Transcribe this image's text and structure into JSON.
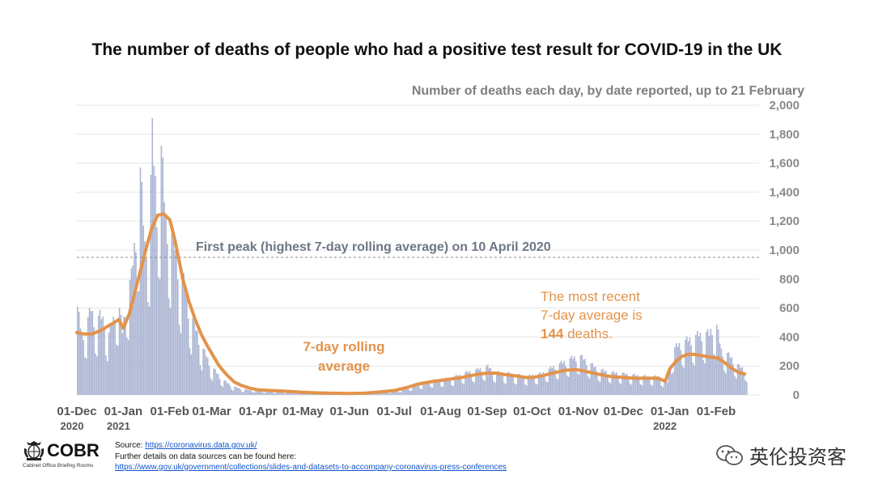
{
  "chart_data": {
    "type": "bar",
    "title": "The number of deaths of people who had a positive test result for COVID-19 in the UK",
    "subtitle": "Number of deaths each day, by date reported, up to 21 February",
    "y_ticks": [
      "2,000",
      "1,800",
      "1,600",
      "1,400",
      "1,200",
      "1,000",
      "800",
      "600",
      "400",
      "200",
      "0"
    ],
    "ylim": [
      0,
      2000
    ],
    "x_ticks": [
      {
        "label": "01-Dec",
        "year": "2020",
        "day": 0
      },
      {
        "label": "01-Jan",
        "year": "2021",
        "day": 31
      },
      {
        "label": "01-Feb",
        "year": "",
        "day": 62
      },
      {
        "label": "01-Mar",
        "year": "",
        "day": 90
      },
      {
        "label": "01-Apr",
        "year": "",
        "day": 121
      },
      {
        "label": "01-May",
        "year": "",
        "day": 151
      },
      {
        "label": "01-Jun",
        "year": "",
        "day": 182
      },
      {
        "label": "01-Jul",
        "year": "",
        "day": 212
      },
      {
        "label": "01-Aug",
        "year": "",
        "day": 243
      },
      {
        "label": "01-Sep",
        "year": "",
        "day": 274
      },
      {
        "label": "01-Oct",
        "year": "",
        "day": 304
      },
      {
        "label": "01-Nov",
        "year": "",
        "day": 335
      },
      {
        "label": "01-Dec",
        "year": "",
        "day": 365
      },
      {
        "label": "01-Jan",
        "year": "2022",
        "day": 396
      },
      {
        "label": "01-Feb",
        "year": "",
        "day": 427
      }
    ],
    "x_start": "2020-12-01",
    "x_end": "2022-02-21",
    "series": [
      {
        "name": "Daily deaths",
        "kind": "bar",
        "color": "#aab4d2",
        "description_points": [
          [
            0,
            610
          ],
          [
            3,
            420
          ],
          [
            6,
            500
          ],
          [
            9,
            610
          ],
          [
            12,
            520
          ],
          [
            15,
            560
          ],
          [
            18,
            530
          ],
          [
            21,
            430
          ],
          [
            24,
            540
          ],
          [
            27,
            680
          ],
          [
            30,
            450
          ],
          [
            33,
            720
          ],
          [
            36,
            830
          ],
          [
            39,
            1160
          ],
          [
            42,
            1570
          ],
          [
            45,
            1060
          ],
          [
            48,
            1220
          ],
          [
            50,
            1820
          ],
          [
            53,
            1360
          ],
          [
            56,
            1720
          ],
          [
            59,
            1240
          ],
          [
            62,
            1200
          ],
          [
            65,
            1050
          ],
          [
            68,
            880
          ],
          [
            71,
            800
          ],
          [
            74,
            620
          ],
          [
            77,
            530
          ],
          [
            80,
            440
          ],
          [
            83,
            340
          ],
          [
            86,
            280
          ],
          [
            89,
            210
          ],
          [
            92,
            170
          ],
          [
            95,
            130
          ],
          [
            98,
            100
          ],
          [
            101,
            80
          ],
          [
            104,
            60
          ],
          [
            107,
            50
          ],
          [
            110,
            40
          ],
          [
            115,
            35
          ],
          [
            121,
            30
          ],
          [
            130,
            25
          ],
          [
            140,
            20
          ],
          [
            151,
            15
          ],
          [
            160,
            12
          ],
          [
            170,
            10
          ],
          [
            182,
            10
          ],
          [
            190,
            12
          ],
          [
            200,
            18
          ],
          [
            212,
            25
          ],
          [
            220,
            45
          ],
          [
            228,
            75
          ],
          [
            236,
            100
          ],
          [
            243,
            110
          ],
          [
            250,
            120
          ],
          [
            257,
            150
          ],
          [
            264,
            170
          ],
          [
            274,
            200
          ],
          [
            280,
            160
          ],
          [
            290,
            150
          ],
          [
            300,
            130
          ],
          [
            304,
            140
          ],
          [
            310,
            150
          ],
          [
            318,
            200
          ],
          [
            326,
            240
          ],
          [
            335,
            280
          ],
          [
            340,
            240
          ],
          [
            348,
            180
          ],
          [
            356,
            160
          ],
          [
            365,
            150
          ],
          [
            372,
            140
          ],
          [
            380,
            130
          ],
          [
            388,
            130
          ],
          [
            394,
            90
          ],
          [
            398,
            320
          ],
          [
            402,
            360
          ],
          [
            406,
            380
          ],
          [
            410,
            400
          ],
          [
            414,
            420
          ],
          [
            418,
            440
          ],
          [
            422,
            430
          ],
          [
            426,
            540
          ],
          [
            430,
            320
          ],
          [
            434,
            290
          ],
          [
            438,
            250
          ],
          [
            442,
            200
          ],
          [
            447,
            180
          ]
        ]
      },
      {
        "name": "7-day rolling average",
        "kind": "line",
        "color": "#e3934b",
        "points": [
          [
            0,
            430
          ],
          [
            5,
            420
          ],
          [
            10,
            420
          ],
          [
            15,
            440
          ],
          [
            20,
            470
          ],
          [
            25,
            500
          ],
          [
            28,
            520
          ],
          [
            31,
            460
          ],
          [
            35,
            560
          ],
          [
            38,
            680
          ],
          [
            42,
            840
          ],
          [
            46,
            1000
          ],
          [
            50,
            1150
          ],
          [
            54,
            1240
          ],
          [
            58,
            1250
          ],
          [
            62,
            1210
          ],
          [
            65,
            1090
          ],
          [
            68,
            940
          ],
          [
            71,
            790
          ],
          [
            75,
            640
          ],
          [
            79,
            520
          ],
          [
            83,
            420
          ],
          [
            87,
            340
          ],
          [
            91,
            270
          ],
          [
            95,
            200
          ],
          [
            100,
            140
          ],
          [
            105,
            90
          ],
          [
            110,
            65
          ],
          [
            116,
            45
          ],
          [
            121,
            35
          ],
          [
            130,
            30
          ],
          [
            140,
            25
          ],
          [
            151,
            18
          ],
          [
            160,
            14
          ],
          [
            170,
            12
          ],
          [
            182,
            10
          ],
          [
            192,
            12
          ],
          [
            200,
            18
          ],
          [
            212,
            30
          ],
          [
            220,
            50
          ],
          [
            228,
            75
          ],
          [
            236,
            90
          ],
          [
            243,
            100
          ],
          [
            250,
            110
          ],
          [
            257,
            120
          ],
          [
            264,
            135
          ],
          [
            270,
            145
          ],
          [
            274,
            150
          ],
          [
            280,
            150
          ],
          [
            286,
            140
          ],
          [
            294,
            130
          ],
          [
            300,
            120
          ],
          [
            304,
            120
          ],
          [
            310,
            130
          ],
          [
            318,
            150
          ],
          [
            326,
            170
          ],
          [
            333,
            175
          ],
          [
            339,
            165
          ],
          [
            345,
            150
          ],
          [
            352,
            135
          ],
          [
            358,
            125
          ],
          [
            365,
            120
          ],
          [
            372,
            115
          ],
          [
            380,
            115
          ],
          [
            388,
            115
          ],
          [
            393,
            95
          ],
          [
            396,
            180
          ],
          [
            400,
            230
          ],
          [
            404,
            265
          ],
          [
            408,
            280
          ],
          [
            412,
            280
          ],
          [
            418,
            270
          ],
          [
            424,
            260
          ],
          [
            428,
            255
          ],
          [
            433,
            220
          ],
          [
            438,
            180
          ],
          [
            442,
            155
          ],
          [
            446,
            144
          ]
        ]
      }
    ],
    "reference_line": {
      "value": 950,
      "label": "First peak (highest 7-day rolling average) on 10 April 2020"
    },
    "annotations": {
      "rolling_label_line1": "7-day rolling",
      "rolling_label_line2": "average",
      "recent_line1": "The most recent",
      "recent_line2": "7-day average is",
      "recent_value": "144",
      "recent_suffix": " deaths."
    }
  },
  "footer": {
    "logo_text": "COBR",
    "logo_sub": "Cabinet Office Briefing Rooms",
    "source_label": "Source: ",
    "source_link": "https://coronavirus.data.gov.uk/",
    "further_details": "Further details on data sources can be found here:",
    "details_link": "https://www.gov.uk/government/collections/slides-and-datasets-to-accompany-coronavirus-press-conferences",
    "watermark": "英伦投资客"
  },
  "colors": {
    "bar": "#aab4d2",
    "line": "#e3934b",
    "reference": "#8a8a8a",
    "reference_text": "#6d7785",
    "annotation": "#e3934b",
    "axis_text": "#8a8a8a"
  }
}
